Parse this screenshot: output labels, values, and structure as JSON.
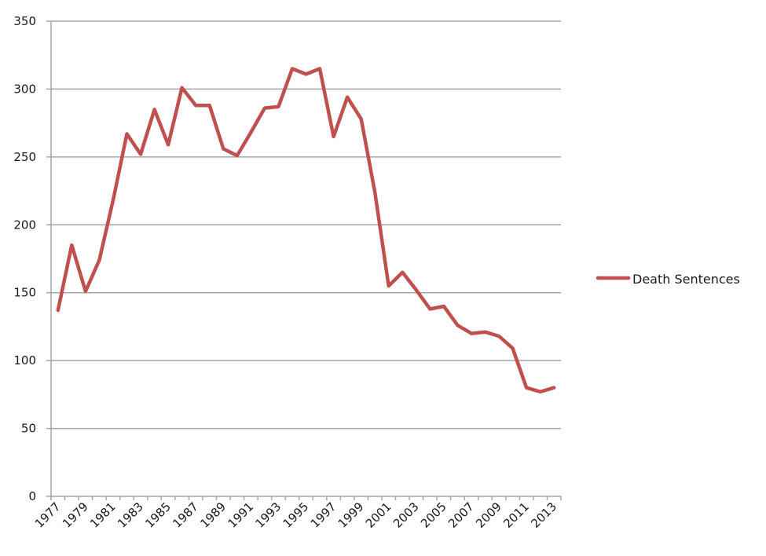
{
  "chart_data": {
    "type": "line",
    "title": "",
    "xlabel": "",
    "ylabel": "",
    "ylim": [
      0,
      350
    ],
    "yticks": [
      0,
      50,
      100,
      150,
      200,
      250,
      300,
      350
    ],
    "grid": true,
    "legend_position": "right",
    "x": [
      1977,
      1978,
      1979,
      1980,
      1981,
      1982,
      1983,
      1984,
      1985,
      1986,
      1987,
      1988,
      1989,
      1990,
      1991,
      1992,
      1993,
      1994,
      1995,
      1996,
      1997,
      1998,
      1999,
      2000,
      2001,
      2002,
      2003,
      2004,
      2005,
      2006,
      2007,
      2008,
      2009,
      2010,
      2011,
      2012,
      2013
    ],
    "xtick_labels": [
      "1977",
      "1979",
      "1981",
      "1983",
      "1985",
      "1987",
      "1989",
      "1991",
      "1993",
      "1995",
      "1997",
      "1999",
      "2001",
      "2003",
      "2005",
      "2007",
      "2009",
      "2011",
      "2013"
    ],
    "series": [
      {
        "name": "Death Sentences",
        "color": "#c0504d",
        "values": [
          137,
          185,
          151,
          174,
          218,
          267,
          252,
          285,
          259,
          301,
          288,
          288,
          256,
          251,
          268,
          286,
          287,
          315,
          311,
          315,
          265,
          294,
          278,
          224,
          155,
          165,
          152,
          138,
          140,
          126,
          120,
          121,
          118,
          109,
          80,
          77,
          80
        ]
      }
    ]
  },
  "legend": {
    "label": "Death Sentences"
  },
  "colors": {
    "gridline": "#a6a6a6",
    "axis": "#a6a6a6",
    "series": "#c0504d"
  }
}
